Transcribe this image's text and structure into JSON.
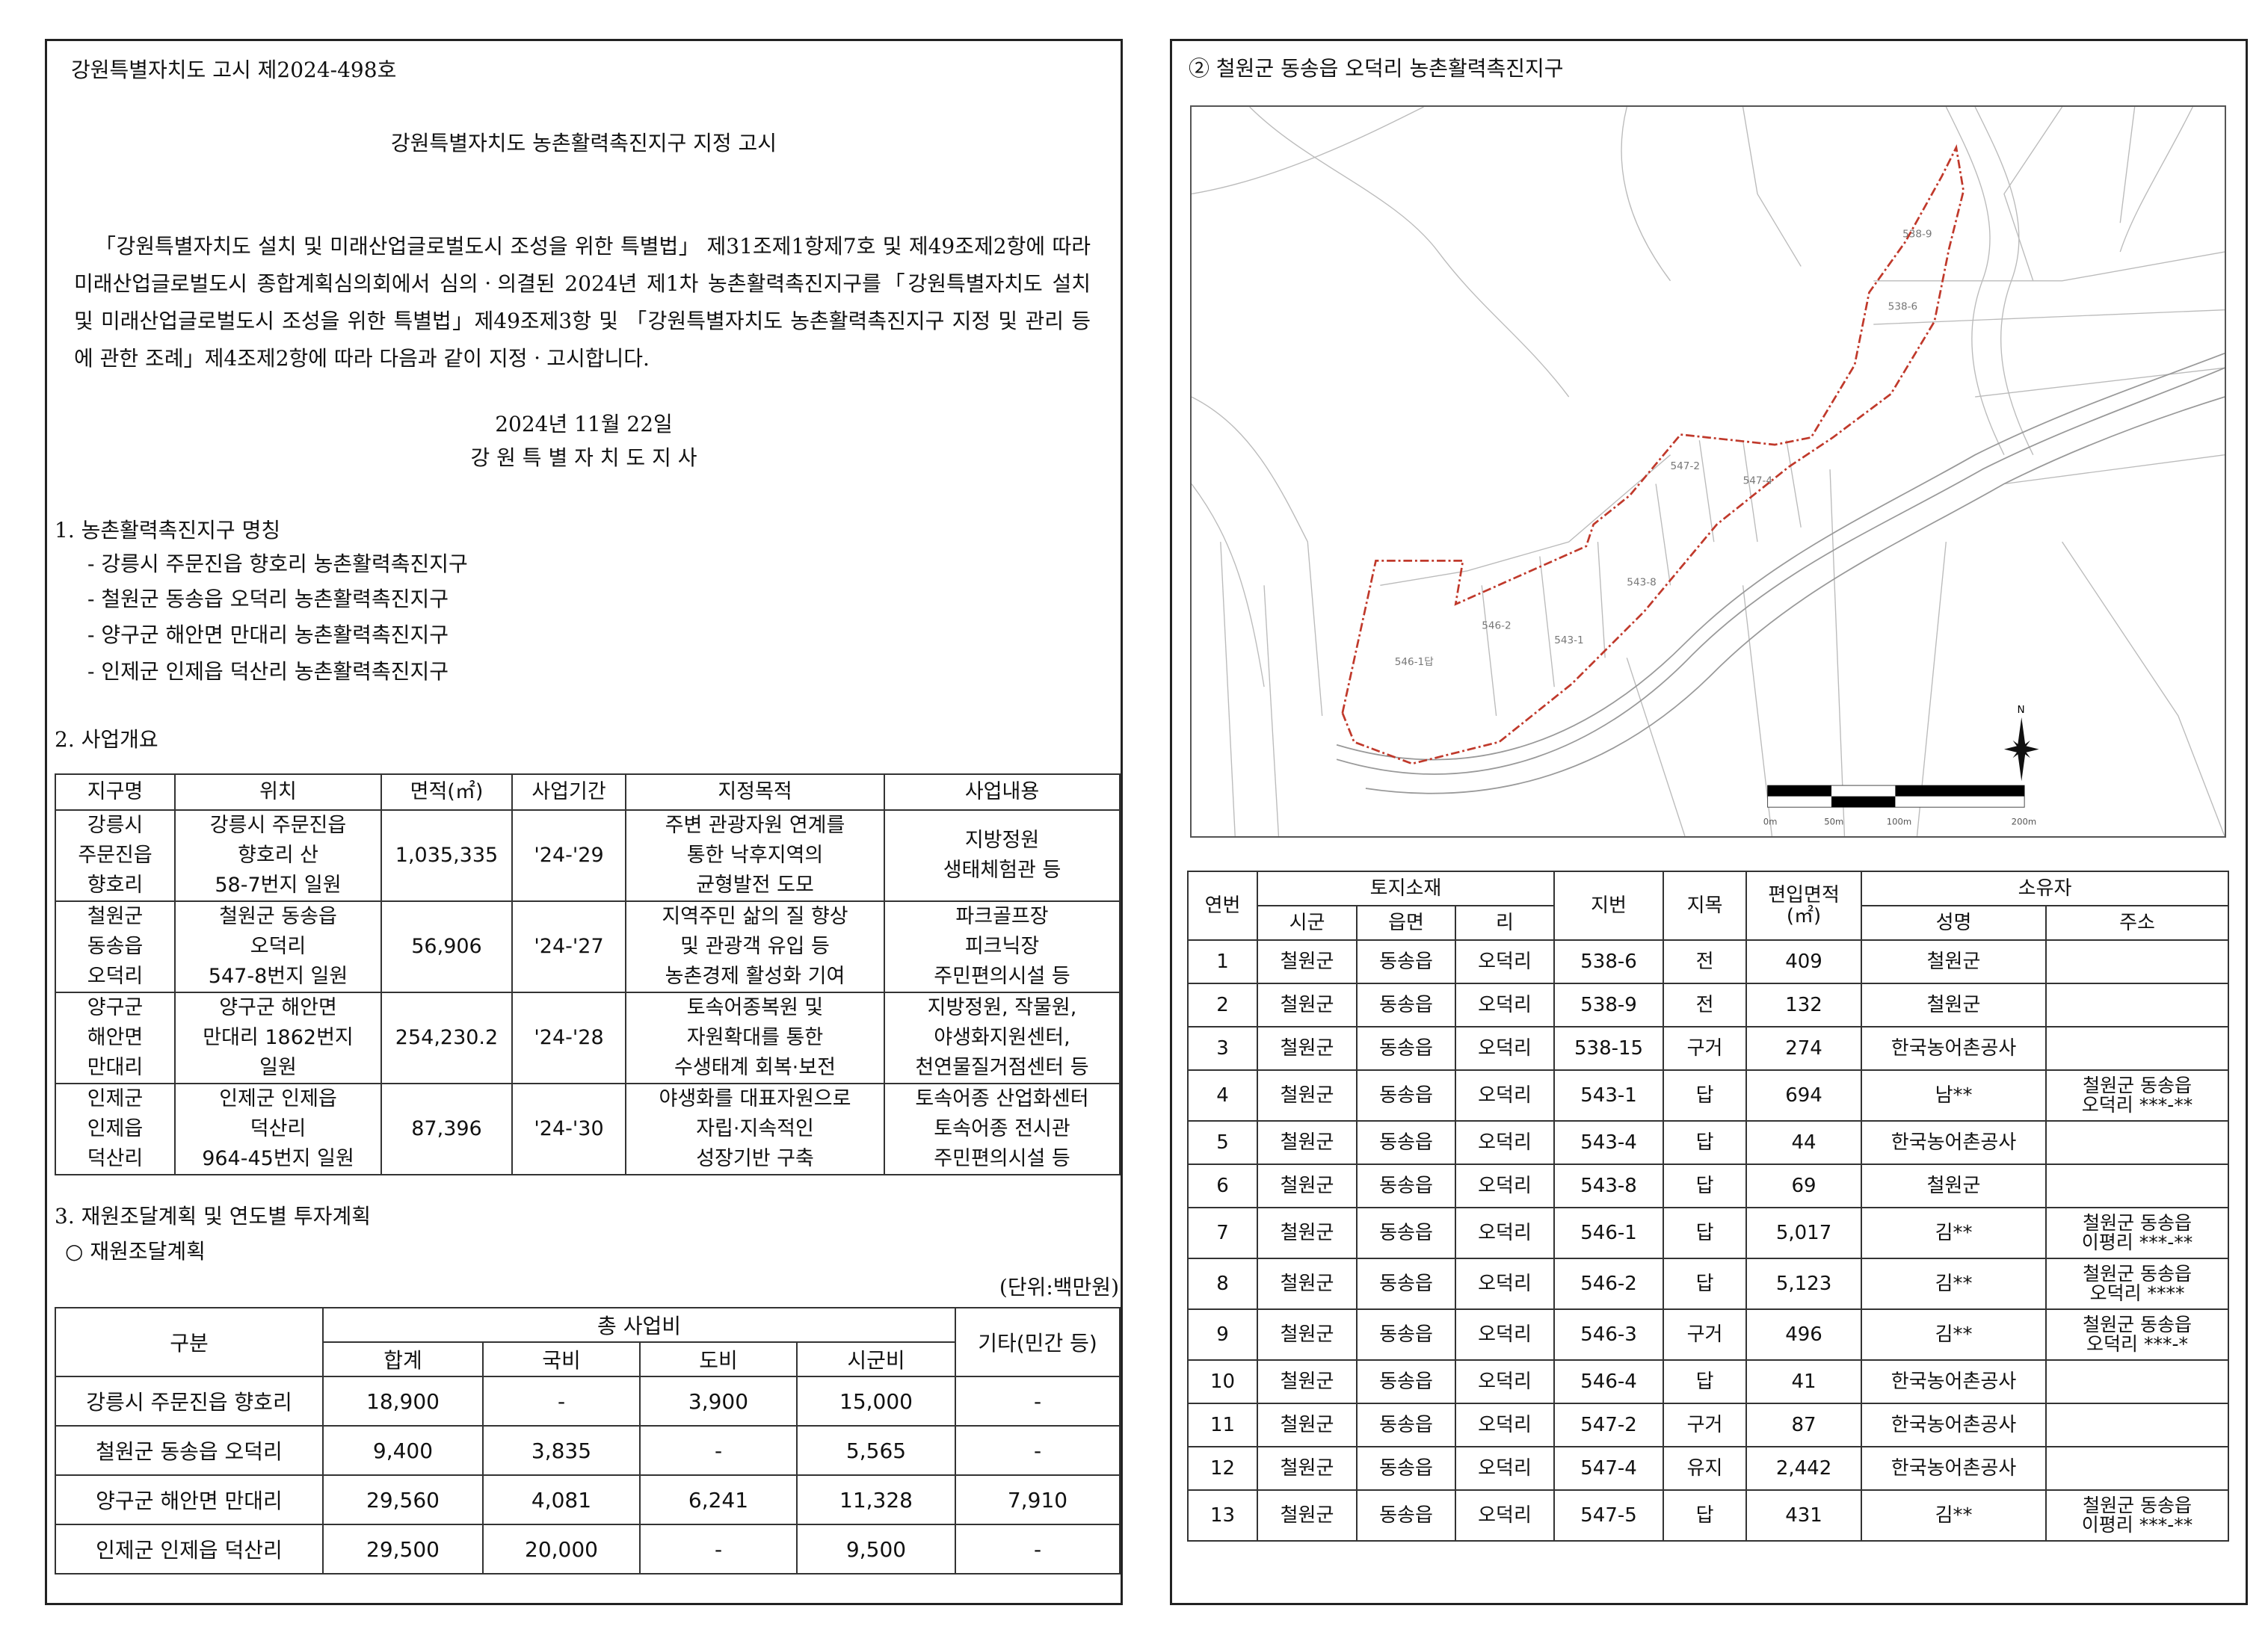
{
  "left_page": {
    "notice_number": "강원특별자치도 고시 제2024-498호",
    "title": "강원특별자치도 농촌활력촉진지구 지정 고시",
    "body": "「강원특별자치도 설치 및 미래산업글로벌도시 조성을 위한 특별법」 제31조제1항제7호 및 제49조제2항에 따라 미래산업글로벌도시 종합계획심의회에서 심의ㆍ의결된 2024년 제1차 농촌활력촉진지구를「강원특별자치도 설치 및 미래산업글로벌도시 조성을 위한 특별법」제49조제3항 및 「강원특별자치도 농촌활력촉진지구 지정 및 관리 등에 관한 조례」제4조제2항에 따라 다음과 같이 지정ㆍ고시합니다.",
    "date": "2024년 11월 22일",
    "signer": "강 원 특 별 자 치 도 지 사",
    "section1": {
      "heading": "1. 농촌활력촉진지구 명칭",
      "items": [
        "- 강릉시 주문진읍 향호리 농촌활력촉진지구",
        "- 철원군 동송읍 오덕리 농촌활력촉진지구",
        "- 양구군 해안면 만대리 농촌활력촉진지구",
        "- 인제군 인제읍 덕산리 농촌활력촉진지구"
      ]
    },
    "section2": {
      "heading": "2. 사업개요",
      "columns": [
        "지구명",
        "위치",
        "면적(㎡)",
        "사업기간",
        "지정목적",
        "사업내용"
      ],
      "rows": [
        [
          "강릉시\n주문진읍\n향호리",
          "강릉시 주문진읍\n향호리 산\n58-7번지 일원",
          "1,035,335",
          "'24-'29",
          "주변 관광자원 연계를\n통한 낙후지역의\n균형발전 도모",
          "지방정원\n생태체험관 등"
        ],
        [
          "철원군\n동송읍\n오덕리",
          "철원군 동송읍\n오덕리\n547-8번지 일원",
          "56,906",
          "'24-'27",
          "지역주민 삶의 질 향상\n및 관광객 유입 등\n농촌경제 활성화 기여",
          "파크골프장\n피크닉장\n주민편의시설 등"
        ],
        [
          "양구군\n해안면\n만대리",
          "양구군 해안면\n만대리 1862번지\n일원",
          "254,230.2",
          "'24-'28",
          "토속어종복원 및\n자원확대를 통한\n수생태계 회복·보전",
          "지방정원, 작물원,\n야생화지원센터,\n천연물질거점센터 등"
        ],
        [
          "인제군\n인제읍\n덕산리",
          "인제군 인제읍\n덕산리\n964-45번지 일원",
          "87,396",
          "'24-'30",
          "야생화를 대표자원으로\n자립·지속적인\n성장기반 구축",
          "토속어종 산업화센터\n토속어종 전시관\n주민편의시설 등"
        ]
      ]
    },
    "section3": {
      "heading": "3. 재원조달계획 및 연도별 투자계획",
      "subheading": "○ 재원조달계획",
      "unit": "(단위:백만원)",
      "header_group": "구분",
      "header_total": "총 사업비",
      "header_other": "기타(민간 등)",
      "sub_columns": [
        "합계",
        "국비",
        "도비",
        "시군비"
      ],
      "rows": [
        [
          "강릉시 주문진읍 향호리",
          "18,900",
          "-",
          "3,900",
          "15,000",
          "-"
        ],
        [
          "철원군 동송읍 오덕리",
          "9,400",
          "3,835",
          "-",
          "5,565",
          "-"
        ],
        [
          "양구군 해안면 만대리",
          "29,560",
          "4,081",
          "6,241",
          "11,328",
          "7,910"
        ],
        [
          "인제군 인제읍 덕산리",
          "29,500",
          "20,000",
          "-",
          "9,500",
          "-"
        ]
      ]
    }
  },
  "right_page": {
    "heading": "② 철원군 동송읍 오덕리 농촌활력촉진지구",
    "map": {
      "boundary_color": "#c0392b",
      "north_label": "N",
      "scale_labels": [
        "0m",
        "50m",
        "100m",
        "200m"
      ]
    },
    "table": {
      "h_no": "연번",
      "h_location": "토지소재",
      "h_sigun": "시군",
      "h_eupmyeon": "읍면",
      "h_ri": "리",
      "h_jibun": "지번",
      "h_jimok": "지목",
      "h_area": "편입면적\n(㎡)",
      "h_owner": "소유자",
      "h_name": "성명",
      "h_address": "주소",
      "rows": [
        [
          "1",
          "철원군",
          "동송읍",
          "오덕리",
          "538-6",
          "전",
          "409",
          "철원군",
          ""
        ],
        [
          "2",
          "철원군",
          "동송읍",
          "오덕리",
          "538-9",
          "전",
          "132",
          "철원군",
          ""
        ],
        [
          "3",
          "철원군",
          "동송읍",
          "오덕리",
          "538-15",
          "구거",
          "274",
          "한국농어촌공사",
          ""
        ],
        [
          "4",
          "철원군",
          "동송읍",
          "오덕리",
          "543-1",
          "답",
          "694",
          "남**",
          "철원군 동송읍\n오덕리 ***-**"
        ],
        [
          "5",
          "철원군",
          "동송읍",
          "오덕리",
          "543-4",
          "답",
          "44",
          "한국농어촌공사",
          ""
        ],
        [
          "6",
          "철원군",
          "동송읍",
          "오덕리",
          "543-8",
          "답",
          "69",
          "철원군",
          ""
        ],
        [
          "7",
          "철원군",
          "동송읍",
          "오덕리",
          "546-1",
          "답",
          "5,017",
          "김**",
          "철원군 동송읍\n이평리 ***-**"
        ],
        [
          "8",
          "철원군",
          "동송읍",
          "오덕리",
          "546-2",
          "답",
          "5,123",
          "김**",
          "철원군 동송읍\n오덕리 ****"
        ],
        [
          "9",
          "철원군",
          "동송읍",
          "오덕리",
          "546-3",
          "구거",
          "496",
          "김**",
          "철원군 동송읍\n오덕리 ***-*"
        ],
        [
          "10",
          "철원군",
          "동송읍",
          "오덕리",
          "546-4",
          "답",
          "41",
          "한국농어촌공사",
          ""
        ],
        [
          "11",
          "철원군",
          "동송읍",
          "오덕리",
          "547-2",
          "구거",
          "87",
          "한국농어촌공사",
          ""
        ],
        [
          "12",
          "철원군",
          "동송읍",
          "오덕리",
          "547-4",
          "유지",
          "2,442",
          "한국농어촌공사",
          ""
        ],
        [
          "13",
          "철원군",
          "동송읍",
          "오덕리",
          "547-5",
          "답",
          "431",
          "김**",
          "철원군 동송읍\n이평리 ***-**"
        ]
      ]
    }
  }
}
